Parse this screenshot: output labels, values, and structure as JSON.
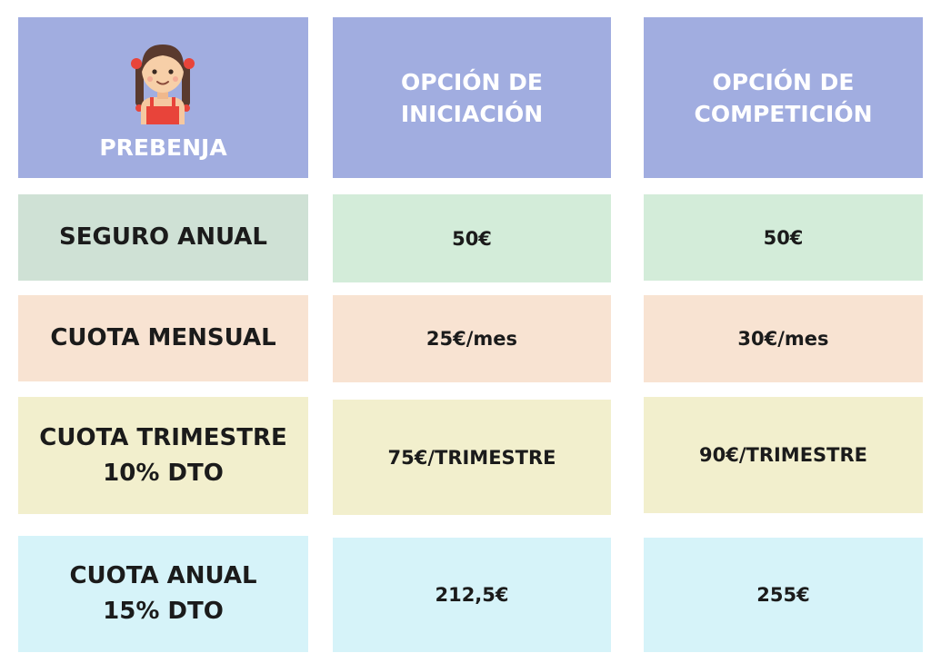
{
  "header": {
    "category_label": "PREBENJA",
    "option_iniciacion": [
      "OPCIÓN DE",
      "INICIACIÓN"
    ],
    "option_competicion": [
      "OPCIÓN DE",
      "COMPETICIÓN"
    ]
  },
  "rows": [
    {
      "label": [
        "SEGURO ANUAL"
      ],
      "iniciacion": "50€",
      "competicion": "50€"
    },
    {
      "label": [
        "CUOTA MENSUAL"
      ],
      "iniciacion": "25€/mes",
      "competicion": "30€/mes"
    },
    {
      "label": [
        "CUOTA TRIMESTRE",
        "10% DTO"
      ],
      "iniciacion": "75€/TRIMESTRE",
      "competicion": "90€/TRIMESTRE"
    },
    {
      "label": [
        "CUOTA ANUAL",
        "15% DTO"
      ],
      "iniciacion": "212,5€",
      "competicion": "255€"
    }
  ],
  "colors": {
    "header": "#a1ade0",
    "seguro": "#cfe1d5",
    "mensual": "#f8e3d2",
    "trimestre": "#f2efcd",
    "anual": "#d6f3f9"
  },
  "icon": "girl-avatar-icon"
}
